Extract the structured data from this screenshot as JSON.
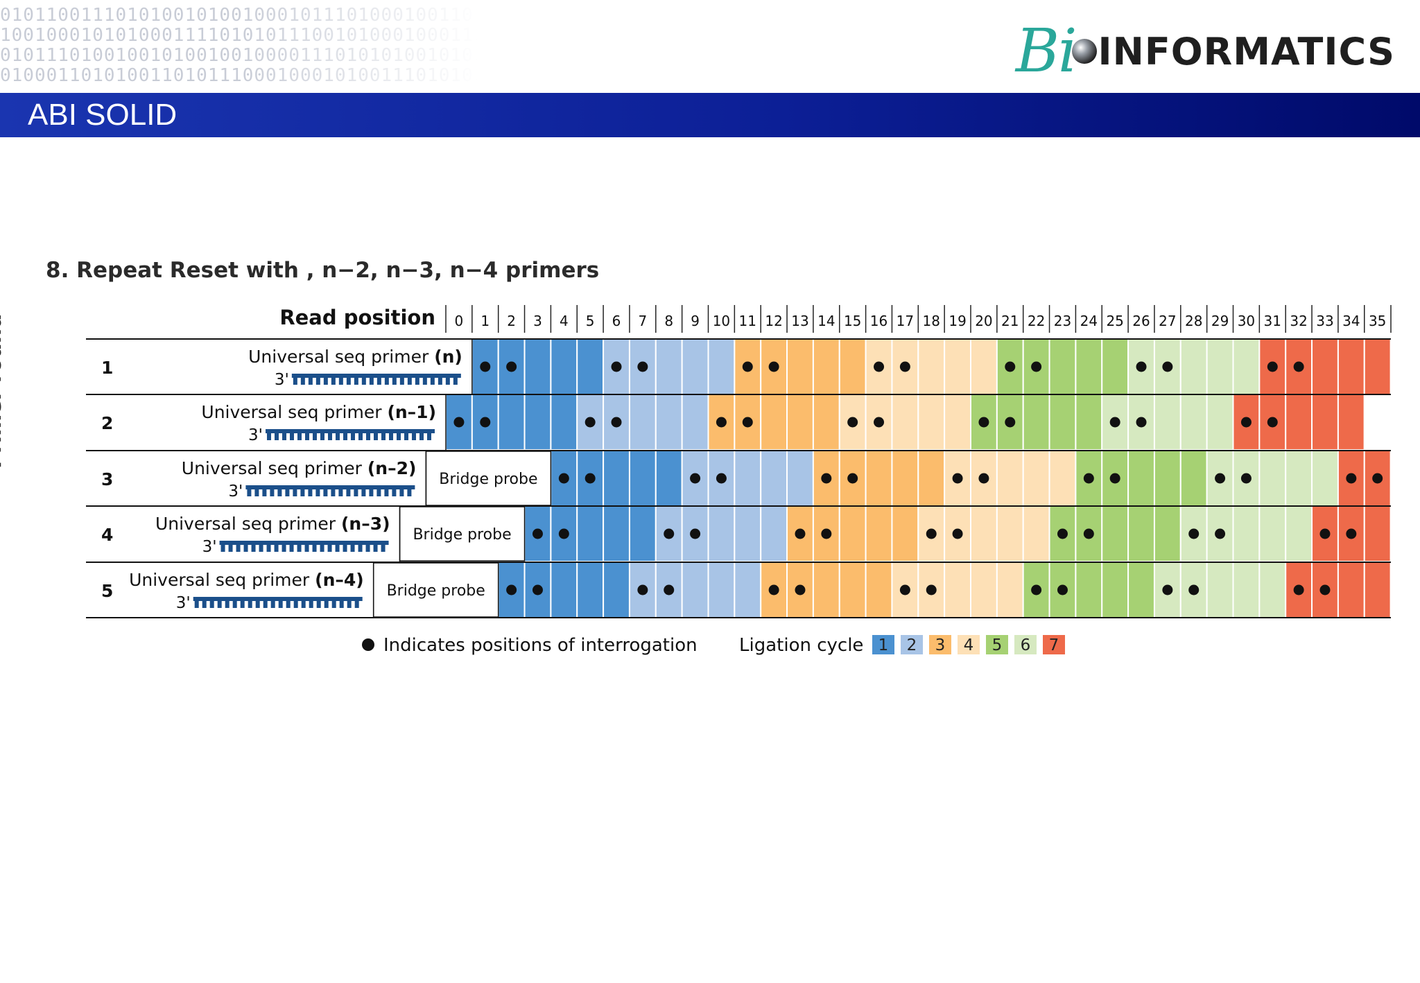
{
  "header": {
    "slide_title": "ABI SOLID",
    "logo_script": "Bi",
    "logo_word": "INFORMATICS",
    "binary_lines": [
      "0101100111010100101001000101110100010011010",
      "1001000101010001111010101110010100010001110",
      "0101110100100101001001000011101010100101010",
      "0100011010100110101110001000101001110101011"
    ]
  },
  "diagram": {
    "step_title": "8. Repeat Reset with , n−2, n−3, n−4 primers",
    "read_position_label": "Read position",
    "y_axis_label": "Primer round",
    "read_positions": [
      0,
      1,
      2,
      3,
      4,
      5,
      6,
      7,
      8,
      9,
      10,
      11,
      12,
      13,
      14,
      15,
      16,
      17,
      18,
      19,
      20,
      21,
      22,
      23,
      24,
      25,
      26,
      27,
      28,
      29,
      30,
      31,
      32,
      33,
      34,
      35
    ],
    "primer_prefix": "Universal seq primer ",
    "three_prime": "3'",
    "bridge_probe": "Bridge probe",
    "rounds": [
      {
        "number": "1",
        "primer_label": "Universal seq primer (n)",
        "suffix": "(n)",
        "start": 1,
        "bridge_start": null,
        "last_blank": false
      },
      {
        "number": "2",
        "primer_label": "Universal seq primer (n–1)",
        "suffix": "(n–1)",
        "start": 0,
        "bridge_start": null,
        "last_blank": true
      },
      {
        "number": "3",
        "primer_label": "Universal seq primer (n–2)",
        "suffix": "(n–2)",
        "start": 4,
        "bridge_start": 0,
        "last_blank": false
      },
      {
        "number": "4",
        "primer_label": "Universal seq primer (n–3)",
        "suffix": "(n–3)",
        "start": 3,
        "bridge_start": 0,
        "last_blank": false
      },
      {
        "number": "5",
        "primer_label": "Universal seq primer (n–4)",
        "suffix": "(n–4)",
        "start": 2,
        "bridge_start": 0,
        "last_blank": false
      }
    ],
    "cycle_length": 5,
    "ligation_colors": [
      "#4b91d0",
      "#a8c4e6",
      "#fbbc6c",
      "#fde0b6",
      "#a6d173",
      "#d6e9c0",
      "#ee6a4a"
    ],
    "legend": {
      "dot_text": "Indicates positions of interrogation",
      "ligation_label": "Ligation cycle",
      "cycles": [
        "1",
        "2",
        "3",
        "4",
        "5",
        "6",
        "7"
      ]
    }
  }
}
